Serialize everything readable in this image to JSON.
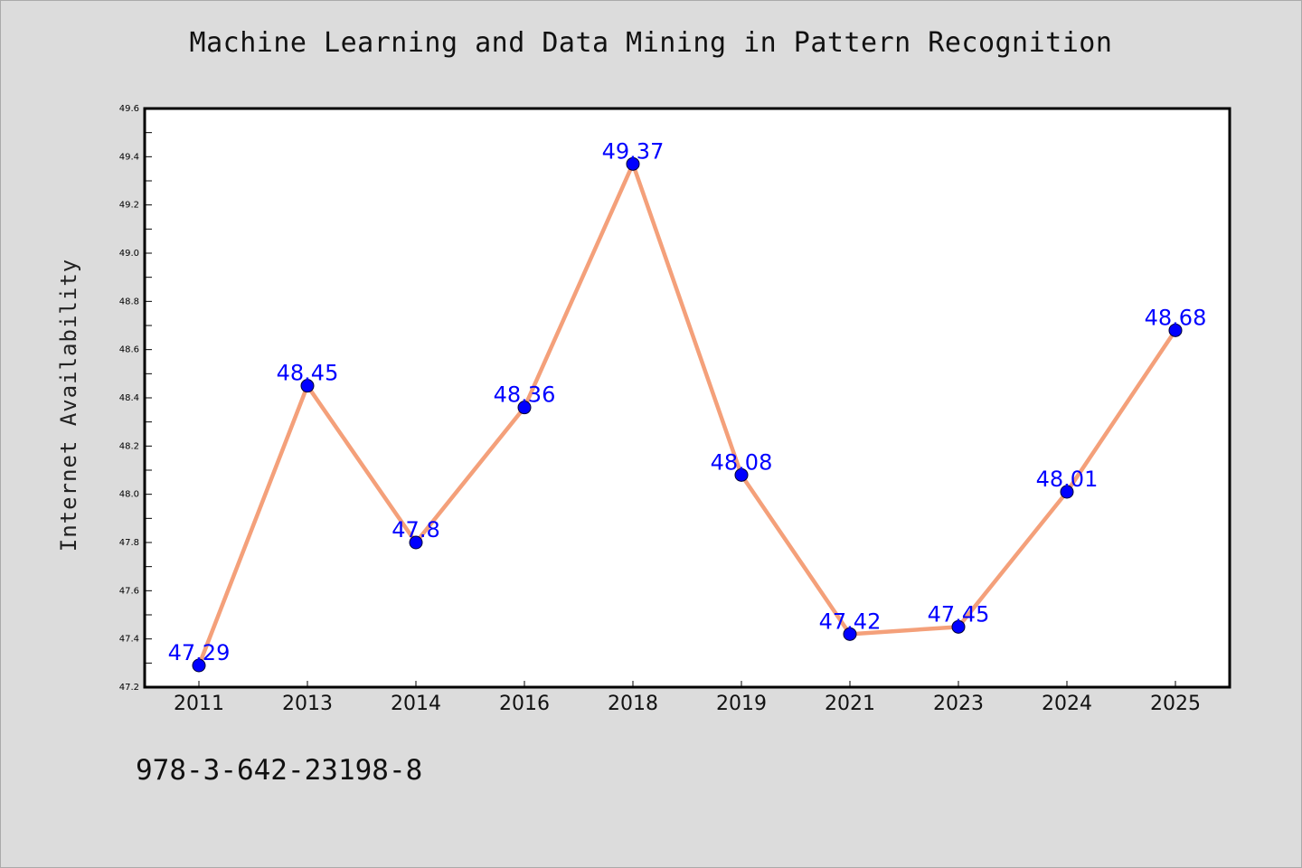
{
  "title": "Machine Learning and Data Mining in Pattern Recognition",
  "ylabel": "Internet Availability",
  "footer_text": "978-3-642-23198-8",
  "colors": {
    "background": "#dcdcdc",
    "plot_area": "#ffffff",
    "line": "#f4a07a",
    "marker": "#0000ff",
    "data_label": "#0000ff"
  },
  "chart_data": {
    "type": "line",
    "title": "Machine Learning and Data Mining in Pattern Recognition",
    "xlabel": "",
    "ylabel": "Internet Availability",
    "categories": [
      "2011",
      "2013",
      "2014",
      "2016",
      "2018",
      "2019",
      "2021",
      "2023",
      "2024",
      "2025"
    ],
    "values": [
      47.29,
      48.45,
      47.8,
      48.36,
      49.37,
      48.08,
      47.42,
      47.45,
      48.01,
      48.68
    ],
    "data_labels": [
      "47.29",
      "48.45",
      "47.8",
      "48.36",
      "49.37",
      "48.08",
      "47.42",
      "47.45",
      "48.01",
      "48.68"
    ],
    "ylim": [
      47.2,
      49.6
    ],
    "yticks": [
      "47.2",
      "47.4",
      "47.6",
      "47.8",
      "48.0",
      "48.2",
      "48.4",
      "48.6",
      "48.8",
      "49.0",
      "49.2",
      "49.4",
      "49.6"
    ],
    "grid": false,
    "legend": "none"
  }
}
